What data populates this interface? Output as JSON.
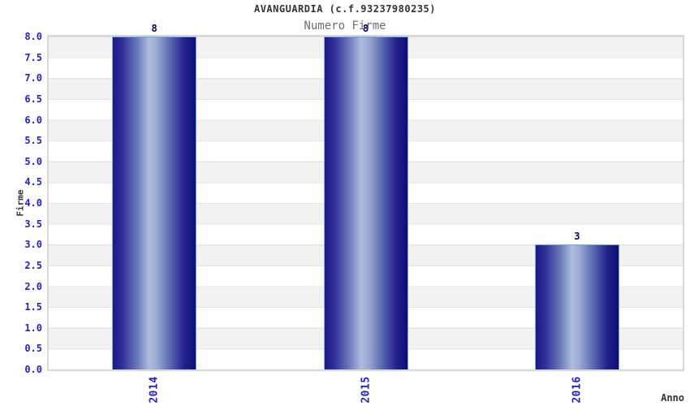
{
  "chart_data": {
    "type": "bar",
    "title": "AVANGUARDIA (c.f.93237980235)",
    "subtitle": "Numero Firme",
    "xlabel": "Anno",
    "ylabel": "Firme",
    "categories": [
      "2014",
      "2015",
      "2016"
    ],
    "values": [
      8,
      8,
      3
    ],
    "value_labels": [
      "8",
      "8",
      "3"
    ],
    "ylim": [
      0,
      8
    ],
    "ytick_step": 0.5,
    "y_ticks": [
      "0.0",
      "0.5",
      "1.0",
      "1.5",
      "2.0",
      "2.5",
      "3.0",
      "3.5",
      "4.0",
      "4.5",
      "5.0",
      "5.5",
      "6.0",
      "6.5",
      "7.0",
      "7.5",
      "8.0"
    ],
    "grid": "horizontal bands alternating every 0.5 units, gray band at top",
    "legend": "none",
    "colors": {
      "tick_label": "#2323cc",
      "value_label": "#000066",
      "title": "#333333",
      "subtitle": "#6e6e6e",
      "axis_title": "#333333",
      "bar_dark_left": "#1a1a86",
      "bar_light": "#aebdde",
      "bar_dark_right": "#0e0e74",
      "bar_border": "#74aaec",
      "band_gray": "#f2f2f2",
      "band_white": "#ffffff",
      "gridline": "#e4e4e4",
      "plot_border": "#d7d7d7"
    }
  }
}
